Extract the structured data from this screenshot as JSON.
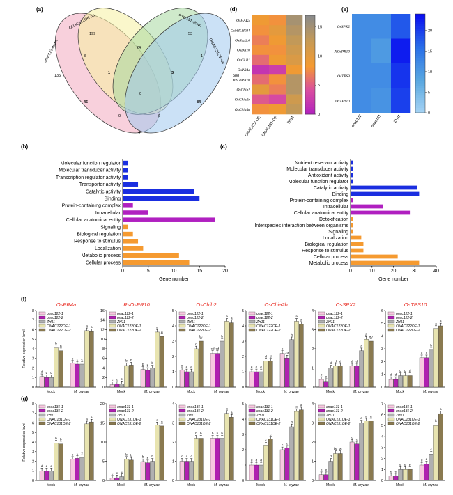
{
  "panel_labels": {
    "a": "(a)",
    "b": "(b)",
    "c": "(c)",
    "d": "(d)",
    "e": "(e)",
    "f": "(f)",
    "g": "(g)"
  },
  "venn": {
    "sets": [
      "onac122-down",
      "ONAC122OE-up",
      "onac131-down",
      "ONAC131OE-up"
    ],
    "colors": [
      "#f2aac0",
      "#f5f0a0",
      "#a8d8a0",
      "#a0c8ee"
    ],
    "counts": [
      "135",
      "199",
      "53",
      "588",
      "3",
      "24",
      "1",
      "1",
      "3",
      "0",
      "46",
      "84",
      "0",
      "0",
      "4"
    ]
  },
  "heatmap_d": {
    "genes": [
      "OsHAK5",
      "OsbHLH034",
      "OsRap2.6",
      "OsDR10",
      "OsGLP1",
      "OsPR4a",
      "RSOsPR10",
      "OsChib2",
      "OsChia2b",
      "OsChia4a"
    ],
    "columns": [
      "ONAC122-OE",
      "ONAC131-OE",
      "ZH11"
    ],
    "values": [
      [
        9,
        8,
        15
      ],
      [
        8,
        10,
        14
      ],
      [
        7,
        9,
        13
      ],
      [
        8,
        8,
        12
      ],
      [
        6,
        9,
        11
      ],
      [
        2,
        3,
        9
      ],
      [
        6,
        8,
        14
      ],
      [
        10,
        7,
        14
      ],
      [
        5,
        4,
        12
      ],
      [
        8,
        9,
        13
      ]
    ],
    "scale_ticks": [
      "0",
      "5",
      "10",
      "15"
    ],
    "scale_max": 17,
    "colors": [
      "#b020c0",
      "#d84ca0",
      "#f59a30",
      "#c69a55",
      "#8a8a8a"
    ]
  },
  "heatmap_e": {
    "genes": [
      "OsSPX2",
      "JIOsPR10",
      "OsTPS3",
      "OsTPS10"
    ],
    "columns": [
      "onac122",
      "onac131",
      "ZH11"
    ],
    "values": [
      [
        12,
        12,
        18
      ],
      [
        12,
        10,
        23
      ],
      [
        12,
        12,
        21
      ],
      [
        12,
        11,
        20
      ]
    ],
    "scale_ticks": [
      "0",
      "5",
      "10",
      "15",
      "20"
    ],
    "scale_max": 24,
    "colors": [
      "#a8d4f5",
      "#5aa8e0",
      "#2a70e8",
      "#0a10f0"
    ]
  },
  "chart_data": [
    {
      "type": "bar",
      "orientation": "horizontal",
      "panel": "(b)",
      "xlabel": "Gene number",
      "xlim": [
        0,
        20
      ],
      "xticks": [
        "0",
        "5",
        "10",
        "15",
        "20"
      ],
      "categories": [
        "Molecular function regulator",
        "Molecular transducer activity",
        "Transcription regulator activity",
        "Transporter activity",
        "Catalytic activity",
        "Binding",
        "Protein-containing complex",
        "Intracellular",
        "Cellular anatomical entity",
        "Signaling",
        "Biological regulation",
        "Response to stimulus",
        "Localization",
        "Metabolic process",
        "Cellular process"
      ],
      "values": [
        1,
        1,
        1,
        3,
        14,
        15,
        2,
        5,
        18,
        1,
        2,
        3,
        4,
        11,
        13
      ],
      "colors": [
        "#1a2ee0",
        "#1a2ee0",
        "#1a2ee0",
        "#1a2ee0",
        "#1a2ee0",
        "#1a2ee0",
        "#b020c0",
        "#b020c0",
        "#b020c0",
        "#f59a30",
        "#f59a30",
        "#f59a30",
        "#f59a30",
        "#f59a30",
        "#f59a30"
      ]
    },
    {
      "type": "bar",
      "orientation": "horizontal",
      "panel": "(c)",
      "xlabel": "Gene number",
      "xlim": [
        0,
        40
      ],
      "xticks": [
        "0",
        "10",
        "20",
        "30",
        "40"
      ],
      "categories": [
        "Nutrient reservoir activity",
        "Molecular transducer activity",
        "Antioxidant activity",
        "Molecular function regulator",
        "Catalytic activity",
        "Binding",
        "Protein-containing complex",
        "Intracellular",
        "Cellular anatomical entity",
        "Detoxification",
        "Interspecies interaction between organisms",
        "Signaling",
        "Localization",
        "Biological regulation",
        "Response to stimulus",
        "Cellular process",
        "Metabolic process"
      ],
      "values": [
        1,
        1,
        1,
        1,
        31,
        32,
        1,
        15,
        28,
        1,
        1,
        1,
        5,
        6,
        6,
        22,
        32
      ],
      "colors": [
        "#1a2ee0",
        "#1a2ee0",
        "#1a2ee0",
        "#1a2ee0",
        "#1a2ee0",
        "#1a2ee0",
        "#b020c0",
        "#b020c0",
        "#b020c0",
        "#f59a30",
        "#f59a30",
        "#f59a30",
        "#f59a30",
        "#f59a30",
        "#f59a30",
        "#f59a30",
        "#f59a30"
      ]
    }
  ],
  "expression": {
    "ylabel": "Relative expression level",
    "groups": [
      "Mock",
      "M. oryzae"
    ],
    "bar_colors": [
      "#f8c8e0",
      "#b020b0",
      "#b0b0b0",
      "#e8e4b0",
      "#8a7a50"
    ],
    "f": {
      "legend": [
        "onac122-1",
        "onac122-2",
        "ZH11",
        "ONAC122OE-1",
        "ONAC122OE-2"
      ],
      "genes": [
        {
          "title": "OsPR4a",
          "ymax": 8,
          "yticks": [
            "0",
            "1",
            "2",
            "3",
            "4",
            "5",
            "6",
            "7",
            "8"
          ],
          "mock": [
            1.1,
            1.0,
            1.0,
            4.1,
            3.8
          ],
          "moryzae": [
            2.5,
            2.4,
            2.4,
            5.9,
            5.8
          ],
          "letters_mock": [
            "d",
            "d",
            "d",
            "b",
            "b"
          ],
          "letters_mor": [
            "c",
            "c",
            "c",
            "a",
            "a"
          ]
        },
        {
          "title": "RsOsPR10",
          "ymax": 16,
          "yticks": [
            "0",
            "2",
            "4",
            "6",
            "8",
            "10",
            "12",
            "14",
            "16"
          ],
          "mock": [
            0.5,
            0.6,
            0.7,
            4.5,
            4.6
          ],
          "moryzae": [
            3.7,
            3.5,
            4.0,
            11.5,
            10.6
          ],
          "letters_mock": [
            "c",
            "c",
            "c",
            "b",
            "b"
          ],
          "letters_mor": [
            "b",
            "b",
            "b",
            "a",
            "a"
          ]
        },
        {
          "title": "OsChib2",
          "ymax": 5,
          "yticks": [
            "0",
            "1",
            "2",
            "3",
            "4",
            "5"
          ],
          "mock": [
            1.1,
            1.0,
            1.0,
            2.5,
            3.0
          ],
          "moryzae": [
            2.2,
            2.2,
            3.0,
            4.3,
            4.2
          ],
          "letters_mock": [
            "e",
            "e",
            "e",
            "d",
            "bc"
          ],
          "letters_mor": [
            "cd",
            "cd",
            "b",
            "a",
            "a"
          ]
        },
        {
          "title": "OsChia2b",
          "ymax": 5,
          "yticks": [
            "0",
            "1",
            "2",
            "3",
            "4",
            "5"
          ],
          "mock": [
            1.0,
            1.0,
            1.0,
            1.7,
            1.7
          ],
          "moryzae": [
            2.2,
            1.9,
            3.1,
            4.3,
            4.1
          ],
          "letters_mock": [
            "e",
            "e",
            "e",
            "d",
            "d"
          ],
          "letters_mor": [
            "c",
            "cd",
            "b",
            "a",
            "a"
          ]
        },
        {
          "title": "OsSPX2",
          "ymax": 4,
          "yticks": [
            "0",
            "1",
            "2",
            "3",
            "4"
          ],
          "mock": [
            0.4,
            0.3,
            1.0,
            1.1,
            1.1
          ],
          "moryzae": [
            1.1,
            1.1,
            1.9,
            2.5,
            2.4
          ],
          "letters_mock": [
            "e",
            "e",
            "d",
            "d",
            "d"
          ],
          "letters_mor": [
            "d",
            "d",
            "c",
            "a",
            "ab"
          ]
        },
        {
          "title": "OsTPS10",
          "ymax": 6,
          "yticks": [
            "0",
            "1",
            "2",
            "3",
            "4",
            "5",
            "6"
          ],
          "mock": [
            0.6,
            0.6,
            0.9,
            0.9,
            0.9
          ],
          "moryzae": [
            2.3,
            2.3,
            2.9,
            4.6,
            4.8
          ],
          "letters_mock": [
            "d",
            "d",
            "d",
            "d",
            "d"
          ],
          "letters_mor": [
            "c",
            "c",
            "b",
            "a",
            "a"
          ]
        }
      ]
    },
    "g": {
      "legend": [
        "onac131-1",
        "onac131-2",
        "ZH11",
        "ONAC131OE-1",
        "ONAC131OE-2"
      ],
      "genes": [
        {
          "ymax": 8,
          "yticks": [
            "0",
            "1",
            "2",
            "3",
            "4",
            "5",
            "6",
            "7",
            "8"
          ],
          "mock": [
            1.0,
            1.0,
            1.0,
            3.9,
            3.8
          ],
          "moryzae": [
            2.2,
            2.3,
            2.4,
            5.9,
            6.1
          ],
          "letters_mock": [
            "d",
            "d",
            "d",
            "b",
            "b"
          ],
          "letters_mor": [
            "c",
            "c",
            "c",
            "a",
            "a"
          ]
        },
        {
          "ymax": 20,
          "yticks": [
            "0",
            "5",
            "10",
            "15",
            "20"
          ],
          "mock": [
            0.6,
            0.7,
            1.0,
            5.5,
            5.3
          ],
          "moryzae": [
            4.9,
            4.6,
            5.0,
            14.5,
            14.2
          ],
          "letters_mock": [
            "c",
            "c",
            "c",
            "b",
            "b"
          ],
          "letters_mor": [
            "b",
            "b",
            "b",
            "a",
            "a"
          ]
        },
        {
          "ymax": 4,
          "yticks": [
            "0",
            "1",
            "2",
            "3",
            "4"
          ],
          "mock": [
            1.0,
            1.0,
            1.0,
            2.2,
            2.2
          ],
          "moryzae": [
            2.2,
            2.2,
            2.2,
            3.5,
            3.3
          ],
          "letters_mock": [
            "c",
            "c",
            "c",
            "b",
            "b"
          ],
          "letters_mor": [
            "b",
            "b",
            "b",
            "a",
            "a"
          ]
        },
        {
          "ymax": 5,
          "yticks": [
            "0",
            "1",
            "2",
            "3",
            "4",
            "5"
          ],
          "mock": [
            1.0,
            1.0,
            1.0,
            2.3,
            2.7
          ],
          "moryzae": [
            2.0,
            2.1,
            3.5,
            4.5,
            4.6
          ],
          "letters_mock": [
            "d",
            "d",
            "d",
            "c",
            "c"
          ],
          "letters_mor": [
            "c",
            "c",
            "b",
            "a",
            "a"
          ]
        },
        {
          "ymax": 4,
          "yticks": [
            "0",
            "1",
            "2",
            "3",
            "4"
          ],
          "mock": [
            0.3,
            0.3,
            1.0,
            1.4,
            1.4
          ],
          "moryzae": [
            2.0,
            1.9,
            3.0,
            3.1,
            3.1
          ],
          "letters_mock": [
            "e",
            "e",
            "d",
            "bc",
            "bc"
          ],
          "letters_mor": [
            "c",
            "c",
            "a",
            "a",
            "a"
          ]
        },
        {
          "ymax": 7,
          "yticks": [
            "0",
            "1",
            "2",
            "3",
            "4",
            "5",
            "6",
            "7"
          ],
          "mock": [
            0.4,
            0.4,
            1.0,
            1.0,
            1.0
          ],
          "moryzae": [
            1.4,
            1.5,
            2.4,
            5.0,
            6.1
          ],
          "letters_mock": [
            "e",
            "e",
            "e",
            "e",
            "e"
          ],
          "letters_mor": [
            "d",
            "d",
            "c",
            "b",
            "a"
          ]
        }
      ]
    }
  }
}
